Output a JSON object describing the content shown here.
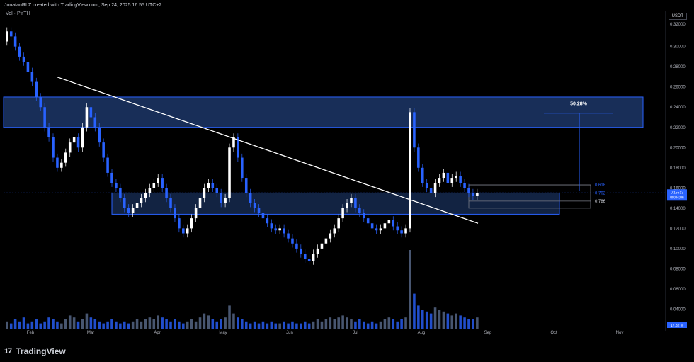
{
  "header": {
    "text": "JonatanRLZ created with TradingView.com, Sep 24, 2025 16:55 UTC+2",
    "symbol": "Vol · PYTH",
    "currency": "USDT"
  },
  "branding": {
    "logo": "17",
    "name": "TradingView"
  },
  "colors": {
    "background": "#000000",
    "up": "#ffffff",
    "down": "#2962ff",
    "zone": "#1e3a6e",
    "zone_border": "#2962ff",
    "trendline": "#ffffff",
    "price_line": "#2962ff"
  },
  "chart_data": {
    "type": "candlestick",
    "title": "",
    "xlabel": "",
    "ylabel": "",
    "x_ticks": [
      "Feb",
      "Mar",
      "Apr",
      "May",
      "Jun",
      "Jul",
      "Aug",
      "Sep",
      "Oct",
      "Nov"
    ],
    "y_ticks": [
      "0.30000",
      "0.28000",
      "0.26000",
      "0.24000",
      "0.22000",
      "0.20000",
      "0.18000",
      "0.16000",
      "0.14000",
      "0.12000",
      "0.10000",
      "0.08000",
      "0.06000",
      "0.04000"
    ],
    "ylim": [
      0.02,
      0.325
    ],
    "last_price": "0.15513",
    "countdown": "09:04:06",
    "volume_label": "17.32 M",
    "top_partial_tick": "0.32000",
    "zones": [
      {
        "y_low": 0.22,
        "y_high": 0.25
      },
      {
        "y_low": 0.134,
        "y_high": 0.155
      }
    ],
    "fib_levels": [
      {
        "label": "0.618",
        "value": 0.163
      },
      {
        "label": "0.702",
        "value": 0.155
      },
      {
        "label": "0.786",
        "value": 0.147
      }
    ],
    "measure": {
      "label": "50.28%",
      "from": 0.157,
      "to": 0.234
    },
    "trendline": {
      "start_value": 0.27,
      "end_value": 0.125
    },
    "series": [
      {
        "name": "PYTH",
        "close": [
          0.315,
          0.31,
          0.3,
          0.29,
          0.285,
          0.275,
          0.265,
          0.25,
          0.24,
          0.22,
          0.21,
          0.19,
          0.18,
          0.185,
          0.195,
          0.205,
          0.21,
          0.2,
          0.22,
          0.24,
          0.23,
          0.22,
          0.205,
          0.19,
          0.175,
          0.165,
          0.16,
          0.15,
          0.14,
          0.135,
          0.14,
          0.145,
          0.15,
          0.155,
          0.16,
          0.165,
          0.17,
          0.16,
          0.15,
          0.14,
          0.13,
          0.12,
          0.115,
          0.12,
          0.13,
          0.14,
          0.15,
          0.16,
          0.165,
          0.16,
          0.155,
          0.145,
          0.15,
          0.2,
          0.21,
          0.19,
          0.17,
          0.155,
          0.145,
          0.14,
          0.135,
          0.13,
          0.125,
          0.12,
          0.118,
          0.12,
          0.115,
          0.11,
          0.105,
          0.1,
          0.095,
          0.09,
          0.088,
          0.095,
          0.1,
          0.105,
          0.11,
          0.115,
          0.12,
          0.13,
          0.14,
          0.145,
          0.15,
          0.14,
          0.135,
          0.13,
          0.125,
          0.12,
          0.118,
          0.12,
          0.125,
          0.128,
          0.122,
          0.118,
          0.115,
          0.12,
          0.235,
          0.2,
          0.18,
          0.165,
          0.16,
          0.155,
          0.165,
          0.17,
          0.175,
          0.165,
          0.17,
          0.172,
          0.165,
          0.16,
          0.155,
          0.152,
          0.155
        ]
      }
    ],
    "volume": [
      4,
      3,
      5,
      4,
      6,
      3,
      4,
      5,
      3,
      4,
      6,
      5,
      4,
      3,
      5,
      7,
      6,
      4,
      5,
      8,
      6,
      5,
      4,
      3,
      4,
      5,
      4,
      3,
      4,
      3,
      4,
      5,
      4,
      5,
      6,
      5,
      7,
      6,
      5,
      4,
      5,
      4,
      3,
      4,
      5,
      4,
      6,
      8,
      7,
      5,
      4,
      5,
      6,
      12,
      8,
      6,
      5,
      4,
      3,
      4,
      3,
      4,
      3,
      4,
      3,
      3,
      4,
      3,
      4,
      3,
      3,
      4,
      3,
      4,
      5,
      4,
      5,
      6,
      5,
      6,
      7,
      6,
      5,
      4,
      5,
      4,
      3,
      4,
      3,
      4,
      5,
      6,
      5,
      4,
      5,
      6,
      40,
      18,
      12,
      10,
      9,
      8,
      11,
      10,
      9,
      8,
      7,
      8,
      7,
      6,
      5,
      5,
      6
    ]
  }
}
